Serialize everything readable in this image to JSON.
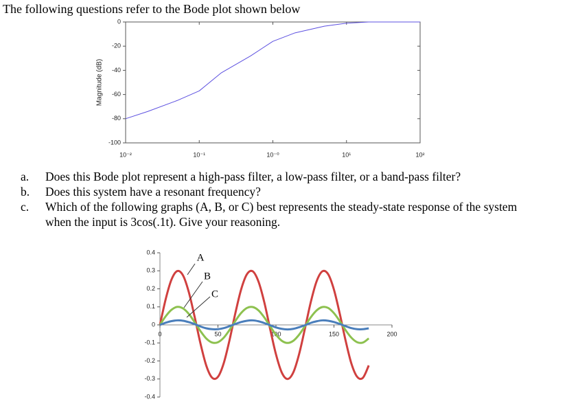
{
  "title": "The following questions refer to the Bode plot shown below",
  "questions": [
    {
      "letter": "a.",
      "text": "Does this Bode plot represent a high-pass filter, a low-pass filter, or a band-pass filter?"
    },
    {
      "letter": "b.",
      "text": "Does this system have a resonant frequency?"
    },
    {
      "letter": "c.",
      "text": "Which of the following graphs (A, B, or C) best represents the steady-state response of the system when the input is 3cos(.1t). Give your reasoning."
    }
  ],
  "chart_data": [
    {
      "type": "line",
      "ylabel": "Magnitude (dB)",
      "log_x": true,
      "color": "#5b4fe0",
      "x": [
        0.01,
        0.02,
        0.05,
        0.1,
        0.2,
        0.5,
        1,
        2,
        5,
        10,
        20,
        50,
        100
      ],
      "values": [
        -80,
        -74,
        -65,
        -57,
        -42,
        -28,
        -16,
        -9,
        -3.5,
        -1,
        0,
        0,
        0
      ],
      "xlim": [
        0.01,
        100
      ],
      "ylim": [
        -100,
        0
      ],
      "xticks": [
        {
          "value": 0.01,
          "label": "10⁻²"
        },
        {
          "value": 0.1,
          "label": "10⁻¹"
        },
        {
          "value": 1,
          "label": "10⁻⁰"
        },
        {
          "value": 10,
          "label": "10¹"
        },
        {
          "value": 100,
          "label": "10²"
        }
      ],
      "yticks": [
        0,
        -20,
        -40,
        -60,
        -80,
        -100
      ]
    },
    {
      "type": "line",
      "x": [
        0,
        5,
        10,
        15,
        20,
        25,
        30,
        35,
        40,
        45,
        50,
        55,
        60,
        65,
        70,
        75,
        80,
        85,
        90,
        95,
        100,
        105,
        110,
        115,
        120,
        125,
        130,
        135,
        140,
        145,
        150,
        155,
        160,
        165,
        170,
        175,
        180
      ],
      "series": [
        {
          "name": "A",
          "color": "#d0403f",
          "values": [
            0,
            0.144,
            0.252,
            0.299,
            0.273,
            0.179,
            0.042,
            -0.105,
            -0.227,
            -0.293,
            -0.288,
            -0.212,
            -0.084,
            0.065,
            0.197,
            0.281,
            0.297,
            0.239,
            0.124,
            -0.023,
            -0.163,
            -0.264,
            -0.3,
            -0.263,
            -0.161,
            -0.02,
            0.126,
            0.241,
            0.297,
            0.281,
            0.195,
            0.062,
            -0.086,
            -0.214,
            -0.288,
            -0.293,
            -0.225
          ]
        },
        {
          "name": "B",
          "color": "#8dc14f",
          "values": [
            0,
            0.048,
            0.084,
            0.1,
            0.091,
            0.06,
            0.014,
            -0.035,
            -0.076,
            -0.098,
            -0.096,
            -0.071,
            -0.028,
            0.022,
            0.066,
            0.094,
            0.099,
            0.08,
            0.041,
            -0.008,
            -0.054,
            -0.088,
            -0.1,
            -0.088,
            -0.054,
            -0.007,
            0.042,
            0.08,
            0.099,
            0.094,
            0.065,
            0.021,
            -0.029,
            -0.071,
            -0.096,
            -0.098,
            -0.075
          ]
        },
        {
          "name": "C",
          "color": "#4a7ebb",
          "values": [
            0,
            0.012,
            0.021,
            0.025,
            0.023,
            0.015,
            0.004,
            -0.009,
            -0.019,
            -0.024,
            -0.024,
            -0.018,
            -0.007,
            0.005,
            0.016,
            0.023,
            0.025,
            0.02,
            0.01,
            -0.002,
            -0.014,
            -0.022,
            -0.025,
            -0.022,
            -0.013,
            -0.002,
            0.011,
            0.02,
            0.025,
            0.023,
            0.016,
            0.005,
            -0.007,
            -0.018,
            -0.024,
            -0.024,
            -0.019
          ]
        }
      ],
      "xlim": [
        0,
        200
      ],
      "ylim": [
        -0.4,
        0.4
      ],
      "xticks": [
        0,
        50,
        100,
        150,
        200
      ],
      "yticks": [
        0.4,
        0.3,
        0.2,
        0.1,
        0,
        -0.1,
        -0.2,
        -0.3,
        -0.4
      ]
    }
  ]
}
